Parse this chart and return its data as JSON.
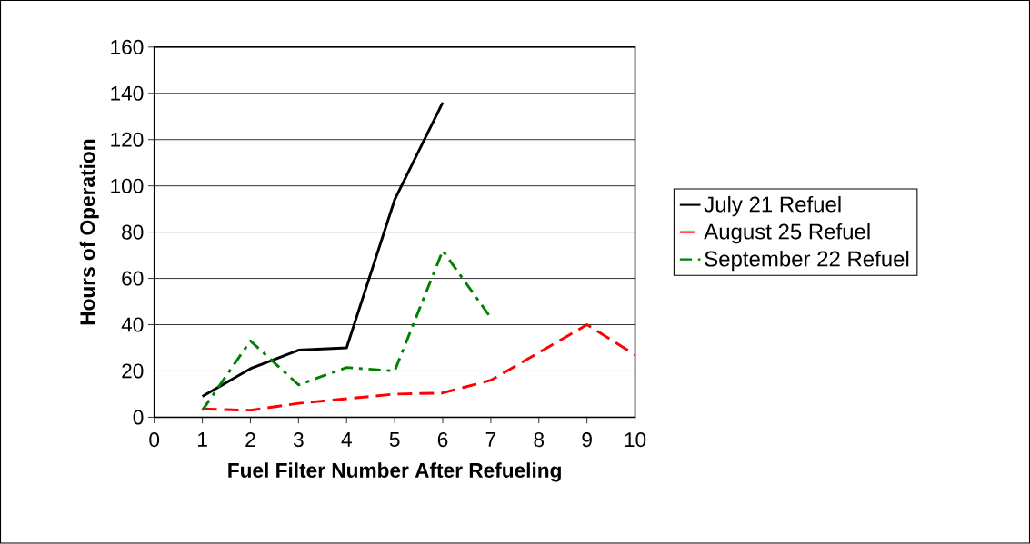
{
  "chart_data": {
    "type": "line",
    "xlabel": "Fuel Filter Number After Refueling",
    "ylabel": "Hours of Operation",
    "xlim": [
      0,
      10
    ],
    "xticks": [
      0,
      1,
      2,
      3,
      4,
      5,
      6,
      7,
      8,
      9,
      10
    ],
    "ylim": [
      0,
      160
    ],
    "yticks": [
      0,
      20,
      40,
      60,
      80,
      100,
      120,
      140,
      160
    ],
    "grid": "y",
    "legend": "right",
    "marker": "none",
    "series": [
      {
        "name": "July 21 Refuel",
        "color": "#000000",
        "line_style": "solid",
        "x": [
          1,
          2,
          3,
          4,
          5,
          6
        ],
        "values": [
          9,
          21,
          29,
          30,
          94,
          136
        ]
      },
      {
        "name": "August 25 Refuel",
        "color": "#ff0000",
        "line_style": "dashed",
        "x": [
          1,
          2,
          3,
          4,
          5,
          6,
          7,
          8,
          9,
          10
        ],
        "values": [
          3.6,
          3,
          6,
          8,
          10,
          10.5,
          16,
          28,
          40,
          27
        ]
      },
      {
        "name": "September 22 Refuel",
        "color": "#008000",
        "line_style": "dashdot",
        "x": [
          1,
          2,
          3,
          4,
          5,
          6,
          7
        ],
        "values": [
          3,
          33,
          14,
          21.5,
          20,
          72,
          43
        ]
      }
    ]
  }
}
